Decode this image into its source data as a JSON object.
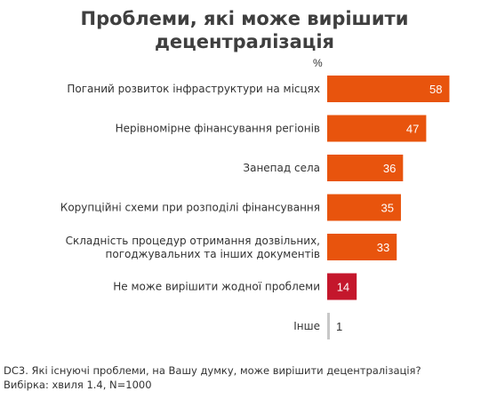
{
  "title_lines": [
    "Проблеми, які може вирішити",
    "децентралізація"
  ],
  "chart_data": {
    "type": "bar",
    "orientation": "horizontal",
    "unit": "%",
    "categories": [
      [
        "Поганий розвиток інфраструктури на місцях"
      ],
      [
        "Нерівномірне фінансування регіонів"
      ],
      [
        "Занепад села"
      ],
      [
        "Корупційні схеми при розподілі фінансування"
      ],
      [
        "Складність процедур отримання дозвільних,",
        "погоджувальних та інших документів"
      ],
      [
        "Не може вирішити жодної проблеми"
      ],
      [
        "Інше"
      ]
    ],
    "values": [
      58,
      47,
      36,
      35,
      33,
      14,
      1
    ],
    "colors": [
      "#e8540d",
      "#e8540d",
      "#e8540d",
      "#e8540d",
      "#e8540d",
      "#c4172c",
      "#c8c8c8"
    ],
    "label_colors": [
      "#ffffff",
      "#ffffff",
      "#ffffff",
      "#ffffff",
      "#ffffff",
      "#ffffff",
      "#333333"
    ],
    "grid": false,
    "legend": "none"
  },
  "footer": {
    "question": "DC3. Які існуючі проблеми, на Вашу думку, може вирішити децентралізація?",
    "sample": "Вибірка: хвиля 1.4, N=1000"
  }
}
